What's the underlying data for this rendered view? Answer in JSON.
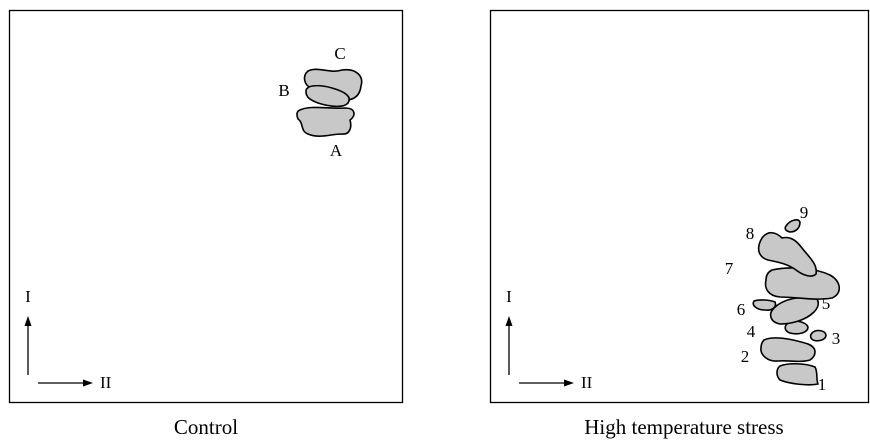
{
  "panels": [
    {
      "caption": "Control",
      "axis_vertical": "I",
      "axis_horizontal": "II",
      "spots": [
        "A",
        "B",
        "C"
      ]
    },
    {
      "caption": "High temperature stress",
      "axis_vertical": "I",
      "axis_horizontal": "II",
      "spots": [
        "1",
        "2",
        "3",
        "4",
        "5",
        "6",
        "7",
        "8",
        "9"
      ]
    }
  ]
}
